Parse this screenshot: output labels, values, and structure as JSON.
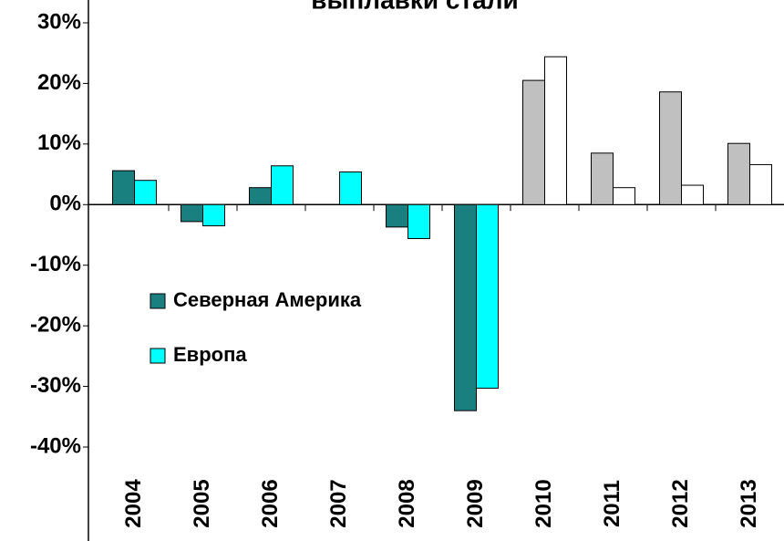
{
  "chart_data": {
    "type": "bar",
    "title": "выплавки стали",
    "categories": [
      "2004",
      "2005",
      "2006",
      "2007",
      "2008",
      "2009",
      "2010",
      "2011",
      "2012",
      "2013"
    ],
    "series": [
      {
        "name": "Северная Америка",
        "color": "#1a7f7f",
        "values": [
          5.6,
          -2.8,
          2.8,
          null,
          -3.7,
          -34,
          20.5,
          8.5,
          18.6,
          10.1
        ],
        "colors": [
          "#1a7f7f",
          "#1a7f7f",
          "#1a7f7f",
          "#1a7f7f",
          "#1a7f7f",
          "#1a7f7f",
          "#c0c0c0",
          "#c0c0c0",
          "#c0c0c0",
          "#c0c0c0"
        ]
      },
      {
        "name": "Европа",
        "color": "#00ffff",
        "values": [
          4.0,
          -3.5,
          6.4,
          5.4,
          -5.6,
          -30.3,
          24.4,
          2.8,
          3.2,
          6.6
        ],
        "colors": [
          "#00ffff",
          "#00ffff",
          "#00ffff",
          "#00ffff",
          "#00ffff",
          "#00ffff",
          "#ffffff",
          "#ffffff",
          "#ffffff",
          "#ffffff"
        ]
      }
    ],
    "ylim": [
      -40,
      30
    ],
    "yticks": [
      {
        "value": -40,
        "label": "-40%"
      },
      {
        "value": -30,
        "label": "-30%"
      },
      {
        "value": -20,
        "label": "-20%"
      },
      {
        "value": -10,
        "label": "-10%"
      },
      {
        "value": 0,
        "label": "0%"
      },
      {
        "value": 10,
        "label": "10%"
      },
      {
        "value": 20,
        "label": "20%"
      },
      {
        "value": 30,
        "label": "30%"
      }
    ],
    "grid": false,
    "legend": "left"
  }
}
